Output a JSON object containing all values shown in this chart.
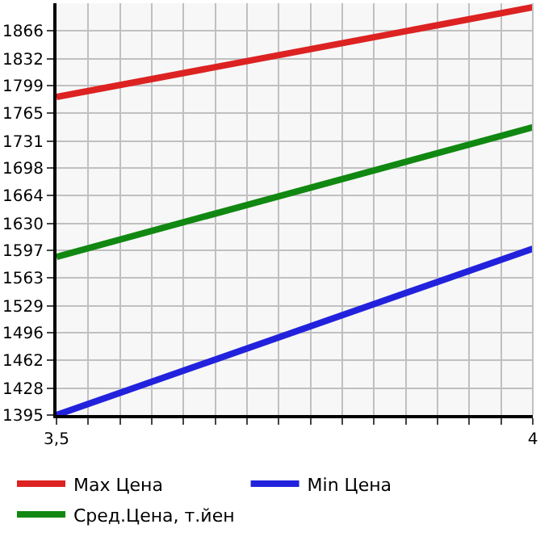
{
  "chart_data": {
    "type": "line",
    "x": [
      3.5,
      4
    ],
    "series": [
      {
        "name": "Max Цена",
        "color": "#dd2222",
        "values": [
          1785,
          1895
        ]
      },
      {
        "name": "Min Цена",
        "color": "#2222dd",
        "values": [
          1395,
          1599
        ]
      },
      {
        "name": "Сред.Цена, т.йен",
        "color": "#118811",
        "values": [
          1589,
          1748
        ]
      }
    ],
    "xlim": [
      3.5,
      4
    ],
    "xticks": [
      {
        "value": 3.5,
        "label": "3,5"
      },
      {
        "value": 3.5333,
        "label": null
      },
      {
        "value": 3.5667,
        "label": null
      },
      {
        "value": 3.6,
        "label": null
      },
      {
        "value": 3.6333,
        "label": null
      },
      {
        "value": 3.6667,
        "label": null
      },
      {
        "value": 3.7,
        "label": null
      },
      {
        "value": 3.7333,
        "label": null
      },
      {
        "value": 3.7667,
        "label": null
      },
      {
        "value": 3.8,
        "label": null
      },
      {
        "value": 3.8333,
        "label": null
      },
      {
        "value": 3.8667,
        "label": null
      },
      {
        "value": 3.9,
        "label": null
      },
      {
        "value": 3.9333,
        "label": null
      },
      {
        "value": 3.9667,
        "label": null
      },
      {
        "value": 4,
        "label": "4"
      }
    ],
    "ylim": [
      1395,
      1900
    ],
    "yticks": [
      1395,
      1428,
      1462,
      1496,
      1529,
      1563,
      1597,
      1630,
      1664,
      1698,
      1731,
      1765,
      1799,
      1832,
      1866
    ],
    "grid": true,
    "legend": "bottom",
    "marker": "none",
    "line_style": "solid"
  }
}
